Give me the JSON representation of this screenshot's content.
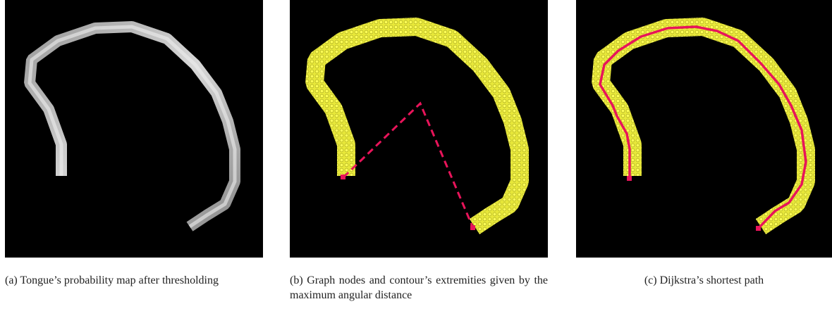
{
  "panels": [
    {
      "caption": "(a) Tongue’s probability map after thresholding"
    },
    {
      "caption": "(b) Graph nodes and contour’s extremities given by the maximum angular distance"
    },
    {
      "caption": "(c) Dijkstra’s shortest path"
    }
  ]
}
